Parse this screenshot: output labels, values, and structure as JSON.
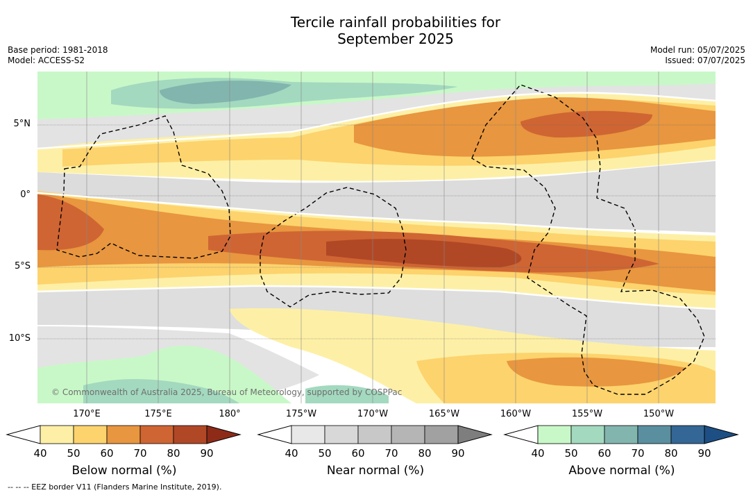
{
  "title_line1": "Tercile rainfall probabilities for",
  "title_line2": "September 2025",
  "meta_left": {
    "base_period": "Base period: 1981-2018",
    "model": "Model: ACCESS-S2"
  },
  "meta_right": {
    "model_run": "Model run: 05/07/2025",
    "issued": "Issued: 07/07/2025"
  },
  "lat_labels": [
    "5°N",
    "0°",
    "5°S",
    "10°S"
  ],
  "lon_labels": [
    "170°E",
    "175°E",
    "180°",
    "175°W",
    "170°W",
    "165°W",
    "160°W",
    "155°W",
    "150°W"
  ],
  "copyright": "© Commonwealth of Australia 2025, Bureau of Meteorology, supported by COSPPac",
  "colorbars": [
    {
      "label": "Below normal (%)",
      "ticks": [
        "40",
        "50",
        "60",
        "70",
        "80",
        "90"
      ],
      "colors": [
        "#fdf0a6",
        "#fdd36d",
        "#e8963f",
        "#cf6533",
        "#b04826",
        "#8e2b18"
      ]
    },
    {
      "label": "Near normal (%)",
      "ticks": [
        "40",
        "50",
        "60",
        "70",
        "80",
        "90"
      ],
      "colors": [
        "#e8e8e8",
        "#d8d8d8",
        "#c8c8c8",
        "#b5b5b5",
        "#a1a1a1",
        "#7e7e7e"
      ]
    },
    {
      "label": "Above normal (%)",
      "ticks": [
        "40",
        "50",
        "60",
        "70",
        "80",
        "90"
      ],
      "colors": [
        "#c9f8c8",
        "#a3d9bf",
        "#82b5ae",
        "#5a8fa0",
        "#346795",
        "#1d4f84"
      ]
    }
  ],
  "footnote": "--  --  -- EEZ border V11 (Flanders Marine Institute, 2019)."
}
